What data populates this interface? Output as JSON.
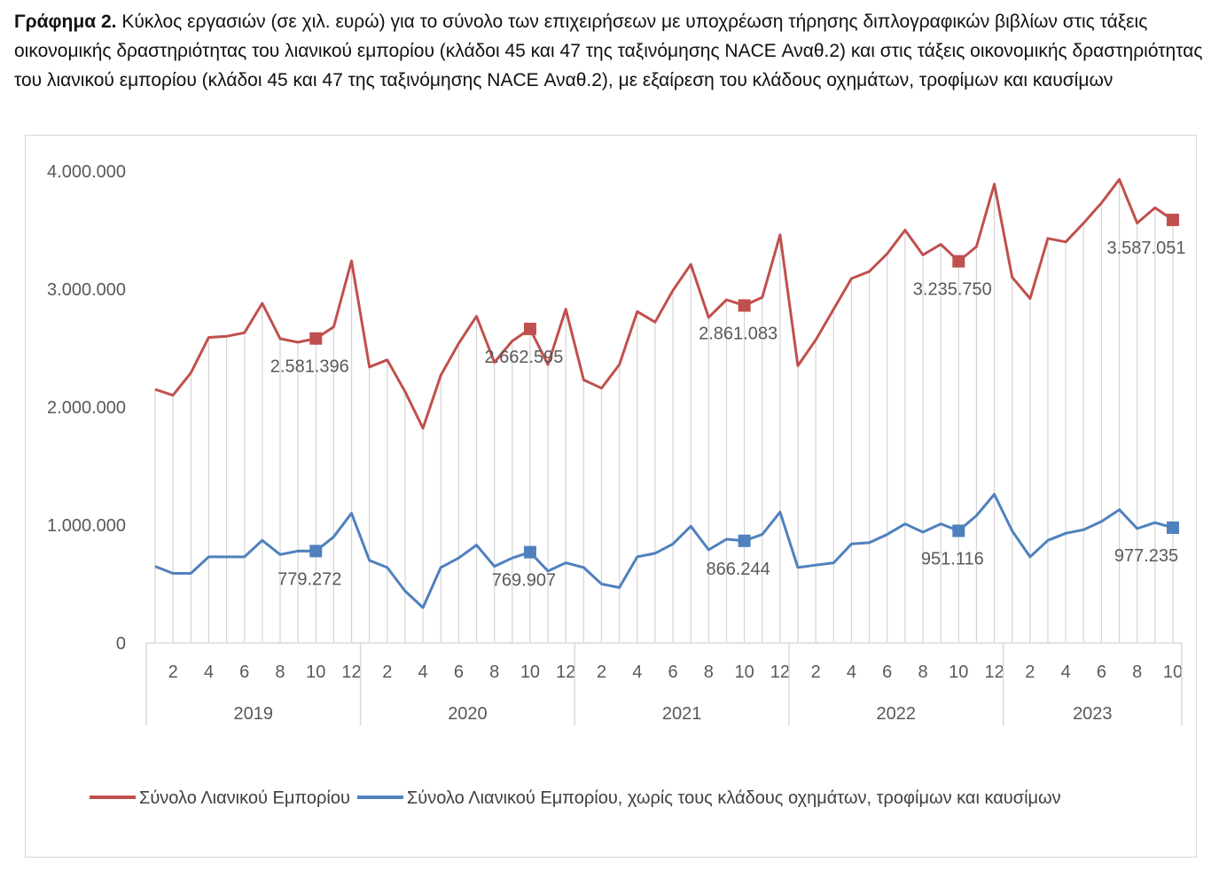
{
  "caption": {
    "prefix": "Γράφημα 2.",
    "text": "Κύκλος εργασιών (σε χιλ. ευρώ) για το σύνολο των επιχειρήσεων με υποχρέωση τήρησης διπλογραφικών βιβλίων στις τάξεις οικονομικής δραστηριότητας του λιανικού εμπορίου (κλάδοι 45 και 47 της ταξινόμησης NACE Αναθ.2) και στις τάξεις οικονομικής δραστηριότητας του λιανικού εμπορίου (κλάδοι 45 και 47 της ταξινόμησης NACE Αναθ.2), με εξαίρεση του κλάδους οχημάτων, τροφίμων και καυσίμων"
  },
  "chart_data": {
    "type": "line",
    "title": "",
    "xlabel": "",
    "ylabel": "",
    "ylim": [
      0,
      4000000
    ],
    "y_ticks": [
      "0",
      "1.000.000",
      "2.000.000",
      "3.000.000",
      "4.000.000"
    ],
    "x_tick_labels": [
      "2",
      "4",
      "6",
      "8",
      "10",
      "12",
      "2",
      "4",
      "6",
      "8",
      "10",
      "12",
      "2",
      "4",
      "6",
      "8",
      "10",
      "12",
      "2",
      "4",
      "6",
      "8",
      "10",
      "12",
      "2",
      "4",
      "6",
      "8",
      "10"
    ],
    "year_groups": [
      {
        "label": "2019",
        "months": 12
      },
      {
        "label": "2020",
        "months": 12
      },
      {
        "label": "2021",
        "months": 12
      },
      {
        "label": "2022",
        "months": 12
      },
      {
        "label": "2023",
        "months": 10
      }
    ],
    "vertical_droplines": true,
    "legend_position": "bottom",
    "series": [
      {
        "name": "Σύνολο Λιανικού Εμπορίου",
        "color": "#c0504d",
        "values": [
          2150000,
          2100000,
          2290000,
          2590000,
          2600000,
          2630000,
          2880000,
          2580000,
          2550000,
          2581396,
          2680000,
          3240000,
          2340000,
          2400000,
          2130000,
          1820000,
          2270000,
          2540000,
          2770000,
          2380000,
          2560000,
          2662595,
          2360000,
          2830000,
          2230000,
          2160000,
          2360000,
          2810000,
          2720000,
          2990000,
          3210000,
          2760000,
          2910000,
          2861083,
          2930000,
          3460000,
          2350000,
          2570000,
          2830000,
          3090000,
          3150000,
          3300000,
          3500000,
          3290000,
          3380000,
          3235750,
          3360000,
          3890000,
          3100000,
          2920000,
          3430000,
          3400000,
          3560000,
          3730000,
          3930000,
          3560000,
          3690000,
          3587051
        ],
        "labeled": [
          {
            "index": 9,
            "label": "2.581.396"
          },
          {
            "index": 21,
            "label": "2.662.595"
          },
          {
            "index": 33,
            "label": "2.861.083"
          },
          {
            "index": 45,
            "label": "3.235.750"
          },
          {
            "index": 57,
            "label": "3.587.051"
          }
        ]
      },
      {
        "name": "Σύνολο Λιανικού Εμπορίου, χωρίς τους κλάδους οχημάτων, τροφίμων και καυσίμων",
        "color": "#4f81bd",
        "values": [
          650000,
          590000,
          590000,
          730000,
          730000,
          730000,
          870000,
          750000,
          780000,
          779272,
          900000,
          1100000,
          700000,
          640000,
          440000,
          300000,
          640000,
          720000,
          830000,
          650000,
          720000,
          769907,
          610000,
          680000,
          640000,
          500000,
          470000,
          730000,
          760000,
          840000,
          990000,
          790000,
          880000,
          866244,
          920000,
          1110000,
          640000,
          660000,
          680000,
          840000,
          850000,
          920000,
          1010000,
          940000,
          1010000,
          951116,
          1080000,
          1260000,
          950000,
          730000,
          870000,
          930000,
          960000,
          1030000,
          1130000,
          970000,
          1020000,
          977235
        ],
        "labeled": [
          {
            "index": 9,
            "label": "779.272"
          },
          {
            "index": 21,
            "label": "769.907"
          },
          {
            "index": 33,
            "label": "866.244"
          },
          {
            "index": 45,
            "label": "951.116"
          },
          {
            "index": 57,
            "label": "977.235"
          }
        ]
      }
    ]
  }
}
